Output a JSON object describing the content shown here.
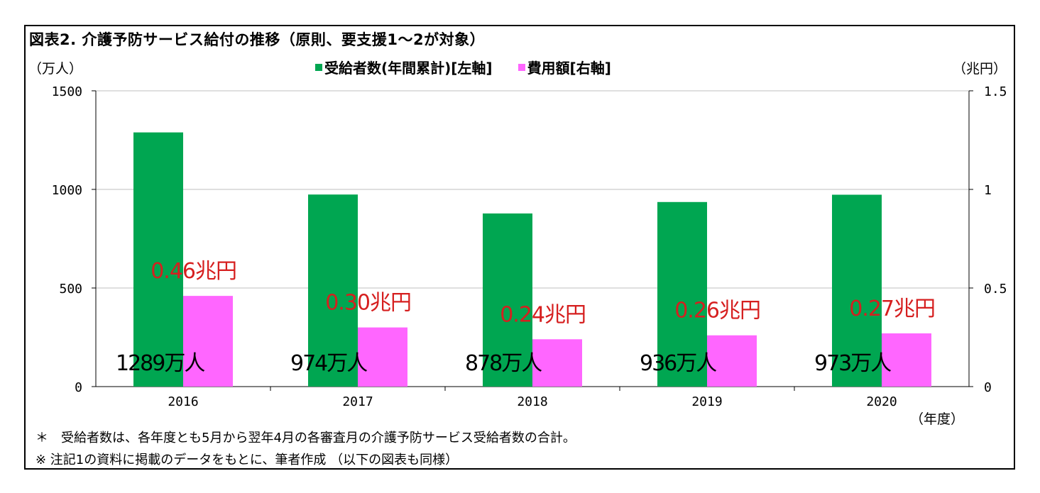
{
  "title": "図表2. 介護予防サービス給付の推移（原則、要支援1～2が対象）",
  "left_unit": "（万人）",
  "right_unit": "（兆円）",
  "x_unit": "（年度）",
  "notes": [
    "＊　受給者数は、各年度とも5月から翌年4月の各審査月の介護予防サービス受給者数の合計。",
    "※ 注記1の資料に掲載のデータをもとに、筆者作成 （以下の図表も同様）"
  ],
  "colors": {
    "recipients": "#00a651",
    "cost": "#ff66ff",
    "cost_label": "#d61f1f",
    "grid": "#bfbfbf"
  },
  "chart_data": {
    "type": "bar",
    "categories": [
      "2016",
      "2017",
      "2018",
      "2019",
      "2020"
    ],
    "series": [
      {
        "name": "受給者数(年間累計)[左軸]",
        "axis": "left",
        "values": [
          1289,
          974,
          878,
          936,
          973
        ],
        "labels": [
          "1289万人",
          "974万人",
          "878万人",
          "936万人",
          "973万人"
        ]
      },
      {
        "name": "費用額[右軸]",
        "axis": "right",
        "values": [
          0.46,
          0.3,
          0.24,
          0.26,
          0.27
        ],
        "labels": [
          "0.46兆円",
          "0.30兆円",
          "0.24兆円",
          "0.26兆円",
          "0.27兆円"
        ]
      }
    ],
    "y_left": {
      "min": 0,
      "max": 1500,
      "ticks": [
        "0",
        "500",
        "1000",
        "1500"
      ],
      "tick_values": [
        0,
        500,
        1000,
        1500
      ]
    },
    "y_right": {
      "min": 0,
      "max": 1.5,
      "ticks": [
        "0",
        "0.5",
        "1",
        "1.5"
      ],
      "tick_values": [
        0,
        0.5,
        1,
        1.5
      ]
    },
    "grid": true,
    "legend_position": "top-center"
  }
}
